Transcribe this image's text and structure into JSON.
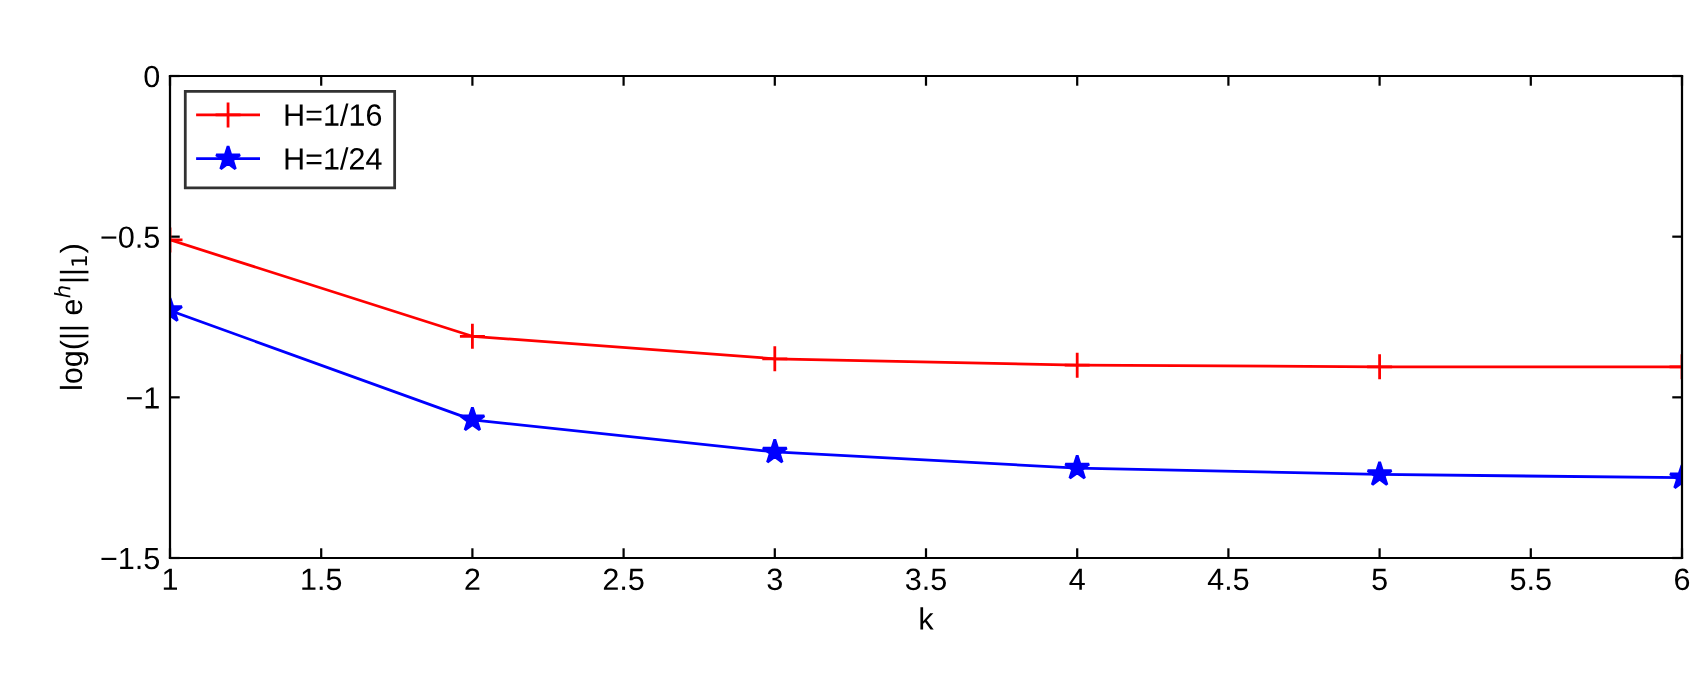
{
  "chart_data": {
    "type": "line",
    "xlabel": "k",
    "ylabel": "log(|| e$^{h}$||$_{1}$)",
    "x": [
      1,
      2,
      3,
      4,
      5,
      6
    ],
    "series": [
      {
        "name": "H=1/16",
        "color": "#ff0000",
        "marker": "cross",
        "values": [
          -0.51,
          -0.81,
          -0.88,
          -0.9,
          -0.905,
          -0.905
        ]
      },
      {
        "name": "H=1/24",
        "color": "#0000ff",
        "marker": "star",
        "values": [
          -0.73,
          -1.07,
          -1.17,
          -1.22,
          -1.24,
          -1.25
        ]
      }
    ],
    "xlim": [
      1,
      6
    ],
    "ylim": [
      -1.5,
      0
    ],
    "xticks": [
      1,
      1.5,
      2,
      2.5,
      3,
      3.5,
      4,
      4.5,
      5,
      5.5,
      6
    ],
    "yticks": [
      {
        "value": -1.5,
        "label": "−1.5"
      },
      {
        "value": -1,
        "label": "−1"
      },
      {
        "value": -0.5,
        "label": "−0.5"
      },
      0
    ],
    "grid": false,
    "legend": "top left",
    "line_style": "solid"
  }
}
